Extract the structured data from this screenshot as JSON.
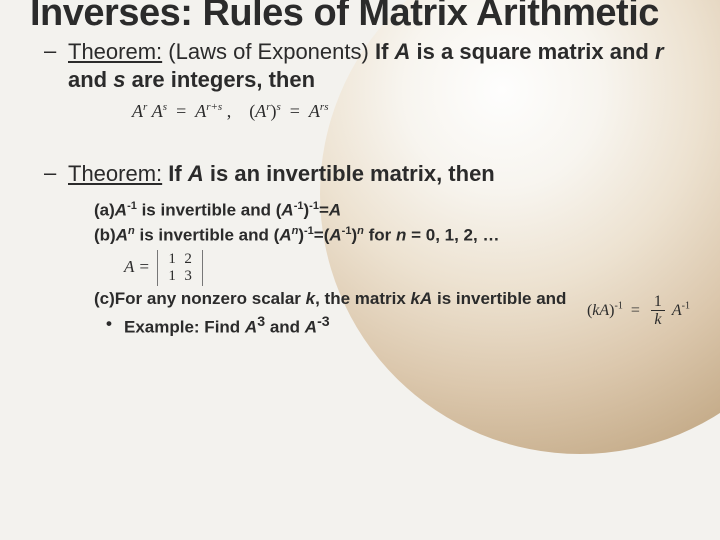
{
  "title": "Inverses: Rules of Matrix Arithmetic",
  "theorem1": {
    "lead": "Theorem:",
    "paren": "(Laws of Exponents)",
    "cond": "If",
    "A": "A",
    "mid1": "is a square matrix and",
    "r": "r",
    "and": "and",
    "s": "s",
    "tail": "are integers, then",
    "eq_lhs1_base": "A",
    "eq_lhs1_exp": "r",
    "eq_lhs2_base": "A",
    "eq_lhs2_exp": "s",
    "eq_rhs1_base": "A",
    "eq_rhs1_exp": "r+s",
    "comma": ",",
    "eq_p_l": "(",
    "eq_p_base": "A",
    "eq_p_exp": "r",
    "eq_p_r": ")",
    "eq_p_outerexp": "s",
    "eq_rhs2_base": "A",
    "eq_rhs2_exp": "rs",
    "equals": "="
  },
  "theorem2": {
    "lead": "Theorem:",
    "cond": "If",
    "A": "A",
    "tail": "is an invertible matrix, then"
  },
  "items": {
    "a": {
      "label": "(a)",
      "t1_base": "A",
      "t1_exp": "-1",
      "t2": "is invertible and",
      "t3_l": "(",
      "t3_base": "A",
      "t3_exp": "-1",
      "t3_r": ")",
      "t3_outexp": "-1",
      "t4": "=",
      "t5": "A"
    },
    "b": {
      "label": "(b)",
      "t1_base": "A",
      "t1_exp": "n",
      "t2": "is invertible and",
      "t3_l": "(",
      "t3_base": "A",
      "t3_exp": "n",
      "t3_r": ")",
      "t3_outexp": "-1",
      "t4": "=(",
      "t5_base": "A",
      "t5_exp": "-1",
      "t6": ")",
      "t6_outexp": "n",
      "t7": "for",
      "t8": "n",
      "t9": "= 0, 1, 2, …",
      "matrix": {
        "Aeq": "A =",
        "rows": [
          [
            "1",
            "2"
          ],
          [
            "1",
            "3"
          ]
        ]
      }
    },
    "c": {
      "label": "(c)",
      "t1": "For any nonzero scalar",
      "k": "k",
      "t2": ", the matrix",
      "kA": "kA",
      "t3": "is invertible and"
    },
    "ex": {
      "lead": "Example: Find",
      "A3_base": "A",
      "A3_exp": "3",
      "and": "and",
      "Am3_base": "A",
      "Am3_exp": "-3"
    }
  },
  "sidefrac": {
    "lhs_l": "(",
    "lhs_kA": "kA",
    "lhs_r": ")",
    "lhs_exp": "-1",
    "eq": "=",
    "frac_num": "1",
    "frac_den": "k",
    "rhs_base": "A",
    "rhs_exp": "-1"
  },
  "colors": {
    "text": "#2b2b2b",
    "background": "#f3f2ee"
  }
}
